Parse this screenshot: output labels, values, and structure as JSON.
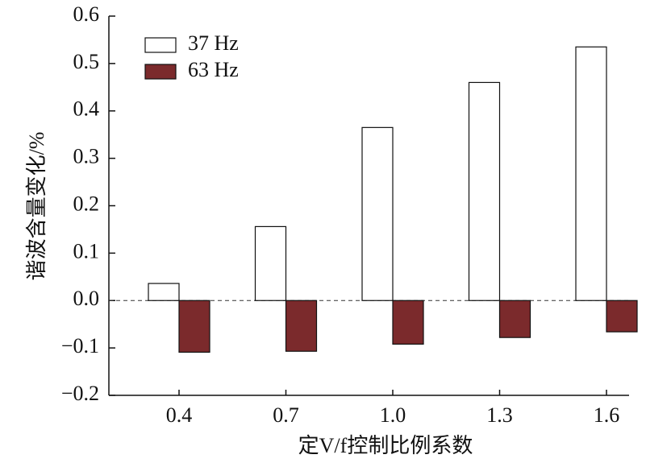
{
  "chart_data": {
    "type": "bar",
    "x_label": "定V/f控制比例系数",
    "y_label": "谐波含量变化/%",
    "categories": [
      "0.4",
      "0.7",
      "1.0",
      "1.3",
      "1.6"
    ],
    "series": [
      {
        "name": "37 Hz",
        "color": "#ffffff",
        "values": [
          0.036,
          0.156,
          0.365,
          0.46,
          0.535
        ]
      },
      {
        "name": "63 Hz",
        "color": "#7b2a2c",
        "values": [
          -0.109,
          -0.107,
          -0.092,
          -0.078,
          -0.066
        ]
      }
    ],
    "ylim": [
      -0.2,
      0.6
    ],
    "yticks": [
      0.6,
      0.5,
      0.4,
      0.3,
      0.2,
      0.1,
      {
        "value": 0,
        "label": "0.0"
      },
      {
        "value": -0.1,
        "label": "−0.1"
      },
      {
        "value": -0.2,
        "label": "−0.2"
      }
    ],
    "zero_line": true,
    "legend": "upper left"
  }
}
